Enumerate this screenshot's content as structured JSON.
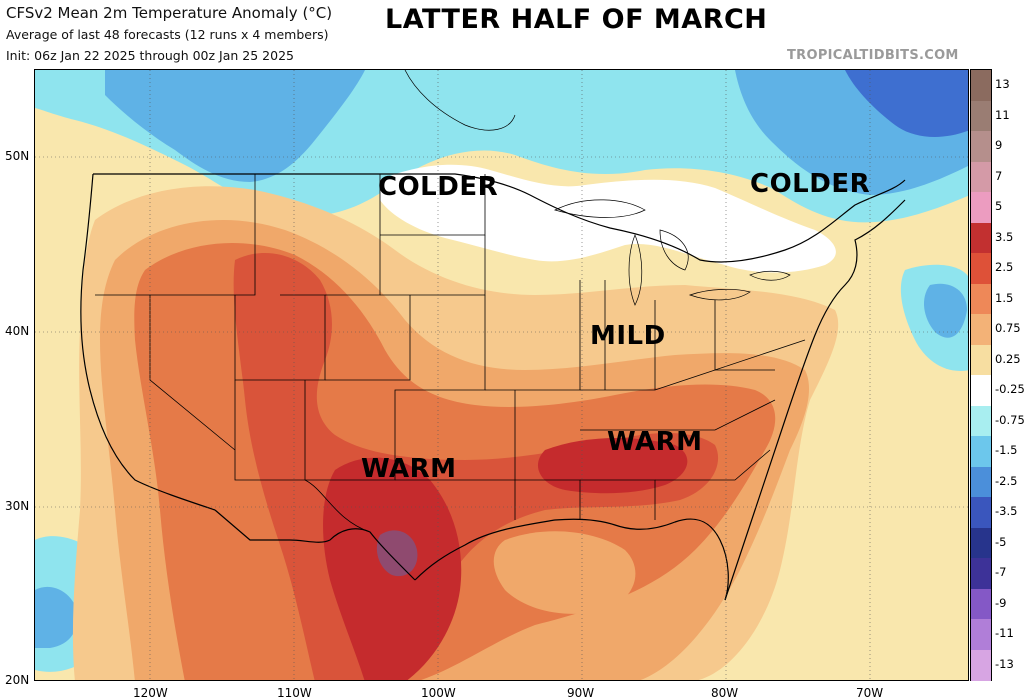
{
  "header": {
    "title": "CFSv2 Mean 2m Temperature Anomaly (°C)",
    "subtitle": "Average of last 48 forecasts (12 runs x 4 members)",
    "init": "Init: 06z Jan 22 2025 through 00z Jan 25 2025",
    "headline": "LATTER HALF OF MARCH",
    "credit": "TROPICALTIDBITS.COM"
  },
  "annotations": {
    "colder_west": "COLDER",
    "colder_east": "COLDER",
    "mild": "MILD",
    "warm_south": "WARM",
    "warm_southeast": "WARM"
  },
  "axes": {
    "lat_labels": [
      "50N",
      "40N",
      "30N",
      "20N"
    ],
    "lon_labels": [
      "120W",
      "110W",
      "100W",
      "90W",
      "80W",
      "70W"
    ]
  },
  "legend": {
    "ticks": [
      "13",
      "11",
      "9",
      "7",
      "5",
      "3.5",
      "2.5",
      "1.5",
      "0.75",
      "0.25",
      "-0.25",
      "-0.75",
      "-1.5",
      "-2.5",
      "-3.5",
      "-5",
      "-7",
      "-9",
      "-11",
      "-13"
    ],
    "colors": [
      "#8b6b5f",
      "#9a7d73",
      "#b58f8c",
      "#d49aa7",
      "#ec9cc0",
      "#c23030",
      "#de5138",
      "#ee8858",
      "#f3b277",
      "#f7dea1",
      "#ffffff",
      "#a8eef0",
      "#6cc7ec",
      "#4b8fda",
      "#3a56bd",
      "#27348c",
      "#3d3298",
      "#8458c6",
      "#b07ed8",
      "#d7a5e3"
    ]
  },
  "colors": {
    "background_warm": "#f9e7ad",
    "neutral": "#ffffff",
    "cold_light": "#8fe4ee",
    "cold_mid": "#5fb2e6",
    "cold_deep": "#3e6fd0",
    "warm_1": "#f6c98d",
    "warm_2": "#f0a86a",
    "warm_3": "#e57a48",
    "warm_4": "#d9543a",
    "warm_5": "#c52b2d",
    "warm_6": "#8f4a6f"
  }
}
